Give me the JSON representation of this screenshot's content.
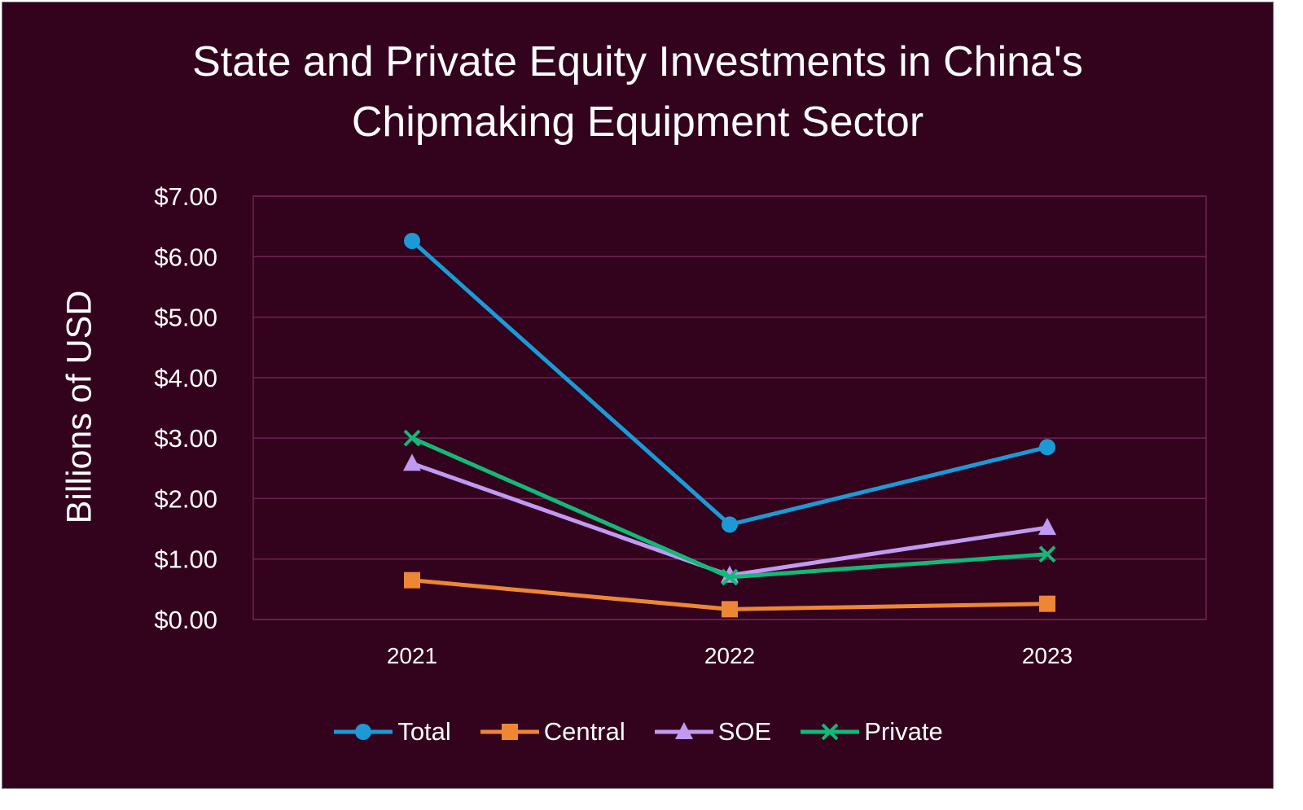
{
  "colors": {
    "background": "#33021d",
    "gridline": "#6e2452",
    "total": "#1b9ad6",
    "central": "#ee8733",
    "soe": "#c09af2",
    "private": "#12b978"
  },
  "chart_data": {
    "type": "line",
    "title": [
      "State and Private Equity Investments in China's",
      "Chipmaking Equipment Sector"
    ],
    "xlabel": "",
    "ylabel": "Billions of USD",
    "categories": [
      "2021",
      "2022",
      "2023"
    ],
    "ylim": [
      0,
      7
    ],
    "yticks": [
      0,
      1,
      2,
      3,
      4,
      5,
      6,
      7
    ],
    "ytick_labels": [
      "$0.00",
      "$1.00",
      "$2.00",
      "$3.00",
      "$4.00",
      "$5.00",
      "$6.00",
      "$7.00"
    ],
    "grid": true,
    "legend_position": "bottom",
    "series": [
      {
        "name": "Total",
        "marker": "circle",
        "color_key": "total",
        "values": [
          6.26,
          1.57,
          2.85
        ]
      },
      {
        "name": "Central",
        "marker": "square",
        "color_key": "central",
        "values": [
          0.65,
          0.17,
          0.26
        ]
      },
      {
        "name": "SOE",
        "marker": "triangle",
        "color_key": "soe",
        "values": [
          2.58,
          0.73,
          1.52
        ]
      },
      {
        "name": "Private",
        "marker": "x",
        "color_key": "private",
        "values": [
          3.0,
          0.7,
          1.08
        ]
      }
    ]
  }
}
